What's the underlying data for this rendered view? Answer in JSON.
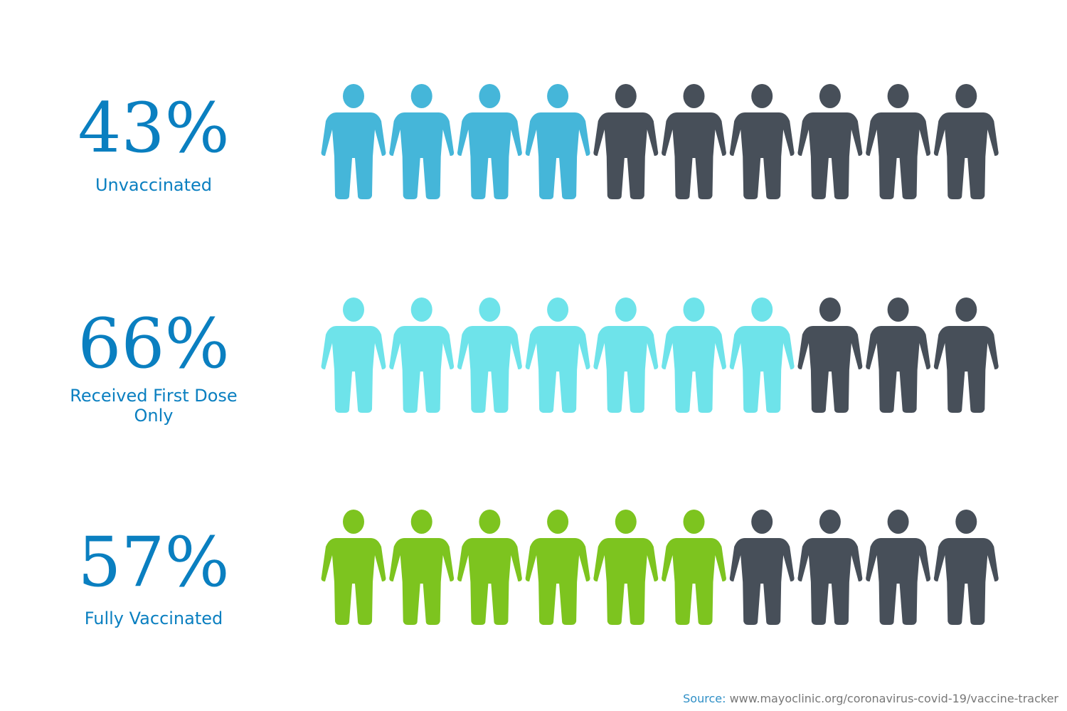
{
  "chart_data": {
    "type": "pictogram",
    "categories": [
      "Unvaccinated",
      "Received First Dose Only",
      "Fully Vaccinated"
    ],
    "values": [
      43,
      66,
      57
    ],
    "value_labels": [
      "43%",
      "66%",
      "57%"
    ],
    "colors": [
      "#45b6d9",
      "#6ee3ea",
      "#7dc41f"
    ],
    "rest_color": "#474f59",
    "source_label": "Source:",
    "source": "www.mayoclinic.org/coronavirus-covid-19/vaccine-tracker"
  }
}
